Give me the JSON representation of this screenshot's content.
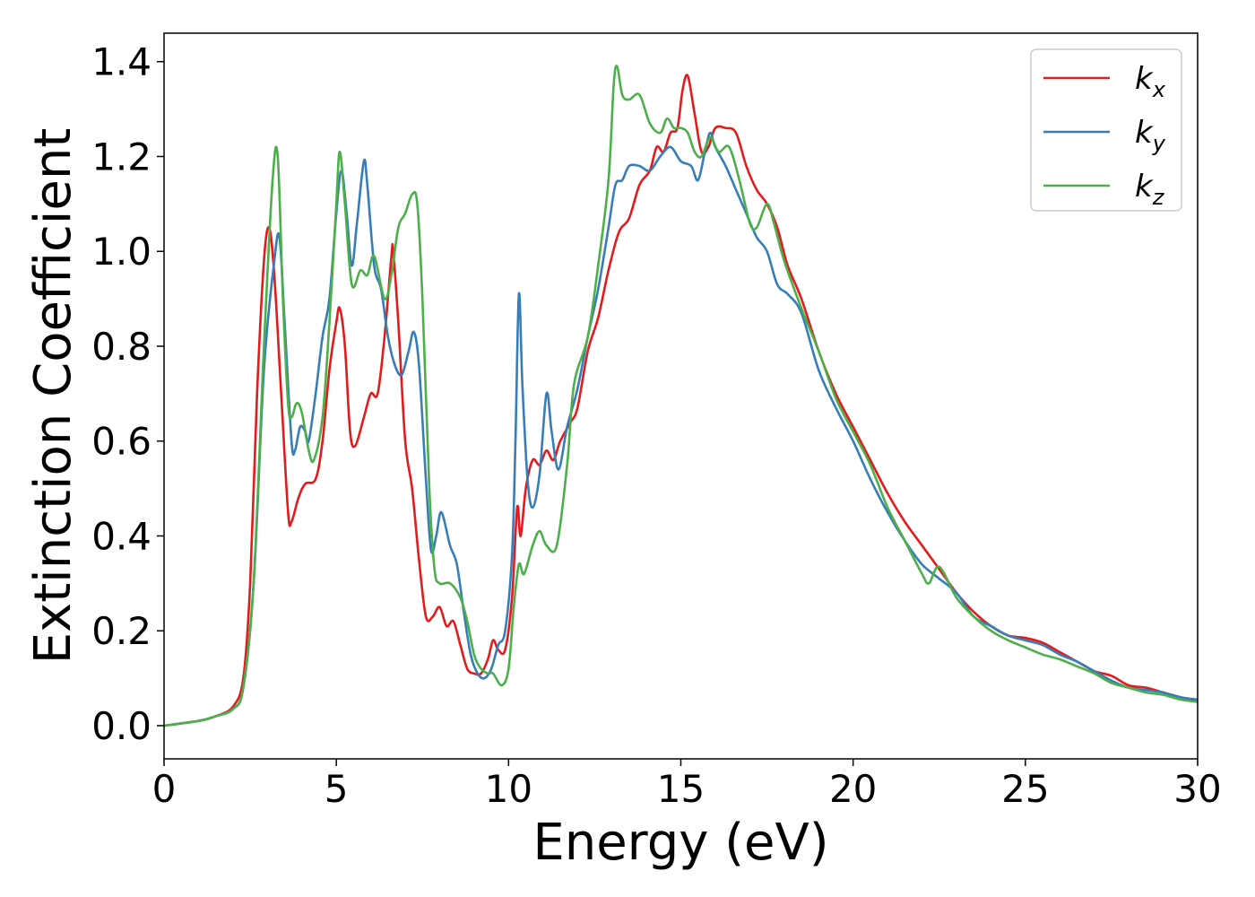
{
  "chart_data": {
    "type": "line",
    "title": "",
    "xlabel": "Energy (eV)",
    "ylabel": "Extinction Coefficient",
    "xlim": [
      0,
      30
    ],
    "ylim": [
      -0.07,
      1.46
    ],
    "xticks": [
      0,
      5,
      10,
      15,
      20,
      25,
      30
    ],
    "xtick_labels": [
      "0",
      "5",
      "10",
      "15",
      "20",
      "25",
      "30"
    ],
    "yticks": [
      0.0,
      0.2,
      0.4,
      0.6,
      0.8,
      1.0,
      1.2,
      1.4
    ],
    "ytick_labels": [
      "0.0",
      "0.2",
      "0.4",
      "0.6",
      "0.8",
      "1.0",
      "1.2",
      "1.4"
    ],
    "grid": false,
    "legend_position": "top-right",
    "series": [
      {
        "name": "k_x",
        "legend_base": "k",
        "legend_sub": "x",
        "color": "#e41a1c",
        "points": [
          [
            0,
            0
          ],
          [
            1,
            0.01
          ],
          [
            1.5,
            0.02
          ],
          [
            2,
            0.04
          ],
          [
            2.3,
            0.1
          ],
          [
            2.5,
            0.3
          ],
          [
            2.7,
            0.7
          ],
          [
            2.9,
            0.98
          ],
          [
            3.05,
            1.05
          ],
          [
            3.2,
            0.95
          ],
          [
            3.4,
            0.7
          ],
          [
            3.6,
            0.45
          ],
          [
            3.7,
            0.43
          ],
          [
            3.9,
            0.48
          ],
          [
            4.1,
            0.51
          ],
          [
            4.4,
            0.52
          ],
          [
            4.6,
            0.6
          ],
          [
            4.8,
            0.75
          ],
          [
            5.0,
            0.85
          ],
          [
            5.1,
            0.88
          ],
          [
            5.25,
            0.8
          ],
          [
            5.4,
            0.62
          ],
          [
            5.55,
            0.59
          ],
          [
            5.8,
            0.65
          ],
          [
            6.0,
            0.7
          ],
          [
            6.2,
            0.7
          ],
          [
            6.4,
            0.82
          ],
          [
            6.6,
            0.99
          ],
          [
            6.65,
            1.0
          ],
          [
            6.8,
            0.85
          ],
          [
            7.0,
            0.6
          ],
          [
            7.2,
            0.5
          ],
          [
            7.4,
            0.35
          ],
          [
            7.6,
            0.23
          ],
          [
            7.8,
            0.23
          ],
          [
            8.0,
            0.25
          ],
          [
            8.2,
            0.21
          ],
          [
            8.4,
            0.22
          ],
          [
            8.6,
            0.17
          ],
          [
            8.8,
            0.12
          ],
          [
            9.0,
            0.11
          ],
          [
            9.2,
            0.11
          ],
          [
            9.4,
            0.14
          ],
          [
            9.55,
            0.18
          ],
          [
            9.7,
            0.16
          ],
          [
            9.9,
            0.16
          ],
          [
            10.1,
            0.27
          ],
          [
            10.25,
            0.46
          ],
          [
            10.35,
            0.4
          ],
          [
            10.5,
            0.5
          ],
          [
            10.7,
            0.56
          ],
          [
            10.9,
            0.55
          ],
          [
            11.1,
            0.58
          ],
          [
            11.3,
            0.56
          ],
          [
            11.5,
            0.6
          ],
          [
            11.8,
            0.64
          ],
          [
            12.0,
            0.67
          ],
          [
            12.3,
            0.79
          ],
          [
            12.6,
            0.86
          ],
          [
            12.9,
            0.96
          ],
          [
            13.2,
            1.04
          ],
          [
            13.5,
            1.07
          ],
          [
            13.8,
            1.14
          ],
          [
            14.1,
            1.17
          ],
          [
            14.3,
            1.22
          ],
          [
            14.5,
            1.21
          ],
          [
            14.7,
            1.25
          ],
          [
            14.9,
            1.26
          ],
          [
            15.05,
            1.34
          ],
          [
            15.2,
            1.37
          ],
          [
            15.4,
            1.29
          ],
          [
            15.6,
            1.21
          ],
          [
            15.8,
            1.22
          ],
          [
            16.0,
            1.26
          ],
          [
            16.3,
            1.26
          ],
          [
            16.6,
            1.25
          ],
          [
            16.9,
            1.18
          ],
          [
            17.2,
            1.13
          ],
          [
            17.5,
            1.1
          ],
          [
            17.8,
            1.05
          ],
          [
            18.1,
            0.97
          ],
          [
            18.5,
            0.9
          ],
          [
            19.0,
            0.79
          ],
          [
            19.5,
            0.7
          ],
          [
            20.0,
            0.63
          ],
          [
            20.5,
            0.56
          ],
          [
            21.0,
            0.49
          ],
          [
            21.5,
            0.43
          ],
          [
            22.0,
            0.38
          ],
          [
            22.5,
            0.33
          ],
          [
            23.0,
            0.28
          ],
          [
            23.5,
            0.24
          ],
          [
            24.0,
            0.21
          ],
          [
            24.5,
            0.19
          ],
          [
            25.0,
            0.185
          ],
          [
            25.5,
            0.175
          ],
          [
            26.0,
            0.155
          ],
          [
            26.5,
            0.135
          ],
          [
            27.0,
            0.115
          ],
          [
            27.5,
            0.105
          ],
          [
            28.0,
            0.085
          ],
          [
            28.5,
            0.08
          ],
          [
            29.0,
            0.07
          ],
          [
            29.5,
            0.06
          ],
          [
            30.0,
            0.05
          ]
        ]
      },
      {
        "name": "k_y",
        "legend_base": "k",
        "legend_sub": "y",
        "color": "#377eb8",
        "points": [
          [
            0,
            0
          ],
          [
            1,
            0.01
          ],
          [
            1.5,
            0.02
          ],
          [
            2,
            0.035
          ],
          [
            2.3,
            0.08
          ],
          [
            2.6,
            0.3
          ],
          [
            2.9,
            0.75
          ],
          [
            3.2,
            0.98
          ],
          [
            3.35,
            1.03
          ],
          [
            3.5,
            0.85
          ],
          [
            3.7,
            0.6
          ],
          [
            3.8,
            0.58
          ],
          [
            3.95,
            0.63
          ],
          [
            4.1,
            0.62
          ],
          [
            4.2,
            0.6
          ],
          [
            4.4,
            0.7
          ],
          [
            4.6,
            0.82
          ],
          [
            4.8,
            0.9
          ],
          [
            5.0,
            1.08
          ],
          [
            5.15,
            1.17
          ],
          [
            5.3,
            1.08
          ],
          [
            5.45,
            0.97
          ],
          [
            5.6,
            1.06
          ],
          [
            5.8,
            1.19
          ],
          [
            5.9,
            1.14
          ],
          [
            6.1,
            0.97
          ],
          [
            6.3,
            0.92
          ],
          [
            6.5,
            0.82
          ],
          [
            6.7,
            0.76
          ],
          [
            6.9,
            0.74
          ],
          [
            7.1,
            0.79
          ],
          [
            7.25,
            0.83
          ],
          [
            7.4,
            0.76
          ],
          [
            7.6,
            0.52
          ],
          [
            7.75,
            0.37
          ],
          [
            7.9,
            0.4
          ],
          [
            8.05,
            0.45
          ],
          [
            8.3,
            0.38
          ],
          [
            8.5,
            0.34
          ],
          [
            8.7,
            0.24
          ],
          [
            8.9,
            0.15
          ],
          [
            9.1,
            0.11
          ],
          [
            9.3,
            0.1
          ],
          [
            9.5,
            0.12
          ],
          [
            9.7,
            0.17
          ],
          [
            9.9,
            0.2
          ],
          [
            10.1,
            0.36
          ],
          [
            10.2,
            0.6
          ],
          [
            10.3,
            0.91
          ],
          [
            10.4,
            0.72
          ],
          [
            10.55,
            0.52
          ],
          [
            10.7,
            0.46
          ],
          [
            10.9,
            0.53
          ],
          [
            11.1,
            0.7
          ],
          [
            11.25,
            0.62
          ],
          [
            11.45,
            0.54
          ],
          [
            11.7,
            0.63
          ],
          [
            12.0,
            0.71
          ],
          [
            12.3,
            0.82
          ],
          [
            12.6,
            0.92
          ],
          [
            12.9,
            1.05
          ],
          [
            13.1,
            1.14
          ],
          [
            13.3,
            1.15
          ],
          [
            13.5,
            1.18
          ],
          [
            13.8,
            1.18
          ],
          [
            14.1,
            1.17
          ],
          [
            14.4,
            1.2
          ],
          [
            14.7,
            1.22
          ],
          [
            15.0,
            1.19
          ],
          [
            15.3,
            1.18
          ],
          [
            15.5,
            1.15
          ],
          [
            15.7,
            1.21
          ],
          [
            15.85,
            1.25
          ],
          [
            16.0,
            1.22
          ],
          [
            16.3,
            1.18
          ],
          [
            16.6,
            1.13
          ],
          [
            16.9,
            1.08
          ],
          [
            17.2,
            1.03
          ],
          [
            17.5,
            1.0
          ],
          [
            17.8,
            0.93
          ],
          [
            18.1,
            0.91
          ],
          [
            18.5,
            0.87
          ],
          [
            19.0,
            0.75
          ],
          [
            19.5,
            0.67
          ],
          [
            20.0,
            0.6
          ],
          [
            20.5,
            0.52
          ],
          [
            21.0,
            0.45
          ],
          [
            21.5,
            0.39
          ],
          [
            22.0,
            0.34
          ],
          [
            22.5,
            0.31
          ],
          [
            23.0,
            0.28
          ],
          [
            23.5,
            0.23
          ],
          [
            24.0,
            0.21
          ],
          [
            24.5,
            0.19
          ],
          [
            25.0,
            0.18
          ],
          [
            25.5,
            0.17
          ],
          [
            26.0,
            0.15
          ],
          [
            26.5,
            0.135
          ],
          [
            27.0,
            0.115
          ],
          [
            27.5,
            0.095
          ],
          [
            28.0,
            0.08
          ],
          [
            28.5,
            0.075
          ],
          [
            29.0,
            0.07
          ],
          [
            29.5,
            0.06
          ],
          [
            30.0,
            0.055
          ]
        ]
      },
      {
        "name": "k_z",
        "legend_base": "k",
        "legend_sub": "z",
        "color": "#4daf4a",
        "points": [
          [
            0,
            0
          ],
          [
            1,
            0.01
          ],
          [
            1.5,
            0.02
          ],
          [
            2,
            0.035
          ],
          [
            2.3,
            0.08
          ],
          [
            2.6,
            0.3
          ],
          [
            2.9,
            0.8
          ],
          [
            3.15,
            1.15
          ],
          [
            3.3,
            1.2
          ],
          [
            3.45,
            0.9
          ],
          [
            3.6,
            0.68
          ],
          [
            3.7,
            0.65
          ],
          [
            3.85,
            0.68
          ],
          [
            4.0,
            0.66
          ],
          [
            4.2,
            0.58
          ],
          [
            4.35,
            0.56
          ],
          [
            4.6,
            0.65
          ],
          [
            4.8,
            0.85
          ],
          [
            5.0,
            1.1
          ],
          [
            5.1,
            1.21
          ],
          [
            5.25,
            1.1
          ],
          [
            5.45,
            0.93
          ],
          [
            5.7,
            0.96
          ],
          [
            5.9,
            0.95
          ],
          [
            6.1,
            0.99
          ],
          [
            6.4,
            0.9
          ],
          [
            6.6,
            0.95
          ],
          [
            6.8,
            1.05
          ],
          [
            7.0,
            1.08
          ],
          [
            7.2,
            1.12
          ],
          [
            7.35,
            1.1
          ],
          [
            7.5,
            0.9
          ],
          [
            7.7,
            0.5
          ],
          [
            7.85,
            0.33
          ],
          [
            8.0,
            0.3
          ],
          [
            8.3,
            0.3
          ],
          [
            8.6,
            0.27
          ],
          [
            8.8,
            0.22
          ],
          [
            9.0,
            0.15
          ],
          [
            9.2,
            0.12
          ],
          [
            9.4,
            0.11
          ],
          [
            9.55,
            0.11
          ],
          [
            9.8,
            0.085
          ],
          [
            10.0,
            0.12
          ],
          [
            10.15,
            0.25
          ],
          [
            10.3,
            0.34
          ],
          [
            10.45,
            0.32
          ],
          [
            10.7,
            0.38
          ],
          [
            10.9,
            0.41
          ],
          [
            11.1,
            0.38
          ],
          [
            11.4,
            0.38
          ],
          [
            11.7,
            0.55
          ],
          [
            11.9,
            0.72
          ],
          [
            12.3,
            0.82
          ],
          [
            12.6,
            0.97
          ],
          [
            12.9,
            1.15
          ],
          [
            13.05,
            1.35
          ],
          [
            13.15,
            1.39
          ],
          [
            13.3,
            1.33
          ],
          [
            13.5,
            1.32
          ],
          [
            13.8,
            1.33
          ],
          [
            14.1,
            1.27
          ],
          [
            14.4,
            1.25
          ],
          [
            14.6,
            1.28
          ],
          [
            14.8,
            1.26
          ],
          [
            15.0,
            1.26
          ],
          [
            15.2,
            1.25
          ],
          [
            15.4,
            1.21
          ],
          [
            15.6,
            1.2
          ],
          [
            15.85,
            1.24
          ],
          [
            16.1,
            1.21
          ],
          [
            16.4,
            1.22
          ],
          [
            16.7,
            1.15
          ],
          [
            17.0,
            1.06
          ],
          [
            17.2,
            1.05
          ],
          [
            17.5,
            1.1
          ],
          [
            17.7,
            1.06
          ],
          [
            18.0,
            0.98
          ],
          [
            18.5,
            0.88
          ],
          [
            19.0,
            0.79
          ],
          [
            19.5,
            0.69
          ],
          [
            20.0,
            0.62
          ],
          [
            20.5,
            0.55
          ],
          [
            21.0,
            0.46
          ],
          [
            21.5,
            0.39
          ],
          [
            22.0,
            0.32
          ],
          [
            22.2,
            0.3
          ],
          [
            22.5,
            0.335
          ],
          [
            23.0,
            0.27
          ],
          [
            23.5,
            0.23
          ],
          [
            24.0,
            0.2
          ],
          [
            24.5,
            0.18
          ],
          [
            25.0,
            0.165
          ],
          [
            25.5,
            0.15
          ],
          [
            26.0,
            0.14
          ],
          [
            26.5,
            0.125
          ],
          [
            27.0,
            0.11
          ],
          [
            27.5,
            0.09
          ],
          [
            28.0,
            0.08
          ],
          [
            28.5,
            0.07
          ],
          [
            29.0,
            0.065
          ],
          [
            29.5,
            0.055
          ],
          [
            30.0,
            0.05
          ]
        ]
      }
    ]
  }
}
